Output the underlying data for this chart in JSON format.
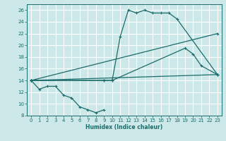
{
  "xlabel": "Humidex (Indice chaleur)",
  "ylabel": "",
  "bg_color": "#cce8e8",
  "line_color": "#1a6b6b",
  "grid_color": "#ffffff",
  "xlim": [
    -0.5,
    23.5
  ],
  "ylim": [
    8,
    27
  ],
  "xticks": [
    0,
    1,
    2,
    3,
    4,
    5,
    6,
    7,
    8,
    9,
    10,
    11,
    12,
    13,
    14,
    15,
    16,
    17,
    18,
    19,
    20,
    21,
    22,
    23
  ],
  "yticks": [
    8,
    10,
    12,
    14,
    16,
    18,
    20,
    22,
    24,
    26
  ],
  "series1_x": [
    0,
    1,
    2,
    3,
    4,
    5,
    6,
    7,
    8,
    9
  ],
  "series1_y": [
    14,
    12.5,
    13,
    13,
    11.5,
    11,
    9.5,
    9,
    8.5,
    9
  ],
  "series2_x": [
    0,
    9,
    10,
    11,
    12,
    13,
    14,
    15,
    16,
    17,
    18,
    23
  ],
  "series2_y": [
    14,
    14,
    14,
    21.5,
    26,
    25.5,
    26,
    25.5,
    25.5,
    25.5,
    24.5,
    15
  ],
  "series3_x": [
    0,
    9,
    10,
    19,
    20,
    21,
    23
  ],
  "series3_y": [
    14,
    14,
    14,
    19.5,
    18.5,
    16.5,
    15
  ],
  "series4_x": [
    0,
    23
  ],
  "series4_y": [
    14,
    22
  ],
  "series5_x": [
    0,
    23
  ],
  "series5_y": [
    14,
    15
  ]
}
